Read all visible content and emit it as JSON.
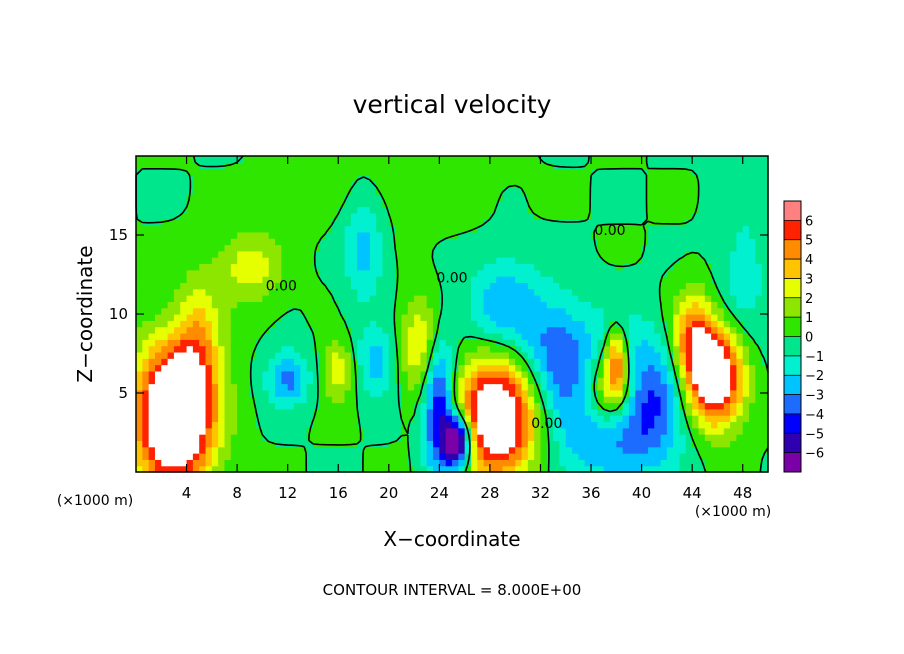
{
  "chart_data": {
    "type": "heatmap",
    "title": "vertical velocity",
    "xlabel": "X−coordinate",
    "ylabel": "Z−coordinate",
    "x_unit_left": "(×1000 m)",
    "x_unit_right": "(×1000 m)",
    "footer": "CONTOUR INTERVAL = 8.000E+00",
    "xlim": [
      0,
      50
    ],
    "ylim": [
      0,
      20
    ],
    "x_ticks": [
      4,
      8,
      12,
      16,
      20,
      24,
      28,
      32,
      36,
      40,
      44,
      48
    ],
    "y_ticks": [
      5,
      10,
      15
    ],
    "zero_contour_label": "0.00",
    "colorbar": {
      "levels": [
        6,
        5,
        4,
        3,
        2,
        1,
        0,
        -1,
        -2,
        -3,
        -4,
        -5,
        -6
      ],
      "labels": [
        "6",
        "5",
        "4",
        "3",
        "2",
        "1",
        "0",
        "−1",
        "−2",
        "−3",
        "−4",
        "−5",
        "−6"
      ]
    },
    "features": [
      {
        "x": 3,
        "z": 3.5,
        "w": 10,
        "sx": 2.2,
        "sz": 3.2
      },
      {
        "x": 5,
        "z": 8,
        "w": 3,
        "sx": 1.3,
        "sz": 3
      },
      {
        "x": 9,
        "z": 13,
        "w": 2.6,
        "sx": 1.8,
        "sz": 1.6
      },
      {
        "x": 16,
        "z": 6.5,
        "w": 3,
        "sx": 0.9,
        "sz": 1.3
      },
      {
        "x": 22.5,
        "z": 8,
        "w": 3.2,
        "sx": 1.1,
        "sz": 2.2
      },
      {
        "x": 24,
        "z": 4,
        "w": -6,
        "sx": 0.9,
        "sz": 3
      },
      {
        "x": 28.5,
        "z": 3.5,
        "w": 9,
        "sx": 2.3,
        "sz": 2.6
      },
      {
        "x": 25.5,
        "z": 2,
        "w": -9,
        "sx": 0.8,
        "sz": 1.2
      },
      {
        "x": 38,
        "z": 4.5,
        "w": -9,
        "sx": 3.2,
        "sz": 2.8
      },
      {
        "x": 37.5,
        "z": 5,
        "w": 10,
        "sx": 1.8,
        "sz": 2
      },
      {
        "x": 38,
        "z": 7,
        "w": 5,
        "sx": 0.6,
        "sz": 1.5
      },
      {
        "x": 44,
        "z": 8.5,
        "w": 4.5,
        "sx": 1.2,
        "sz": 2
      },
      {
        "x": 45.8,
        "z": 6,
        "w": 9,
        "sx": 1.6,
        "sz": 2.2
      },
      {
        "x": 12,
        "z": 6,
        "w": -3.5,
        "sx": 1.2,
        "sz": 1.2
      },
      {
        "x": 18,
        "z": 14.5,
        "w": -2.5,
        "sx": 1.2,
        "sz": 2.6
      },
      {
        "x": 19,
        "z": 7,
        "w": -2.5,
        "sx": 1.2,
        "sz": 1.5
      },
      {
        "x": 29,
        "z": 10.5,
        "w": -2.8,
        "sx": 2,
        "sz": 2.2
      },
      {
        "x": 33,
        "z": 8,
        "w": -2.5,
        "sx": 2,
        "sz": 2.5
      },
      {
        "x": 20,
        "z": 18,
        "w": 0.8,
        "sx": 5,
        "sz": 2
      },
      {
        "x": 48,
        "z": 12,
        "w": -1.5,
        "sx": 1.5,
        "sz": 4
      }
    ]
  }
}
